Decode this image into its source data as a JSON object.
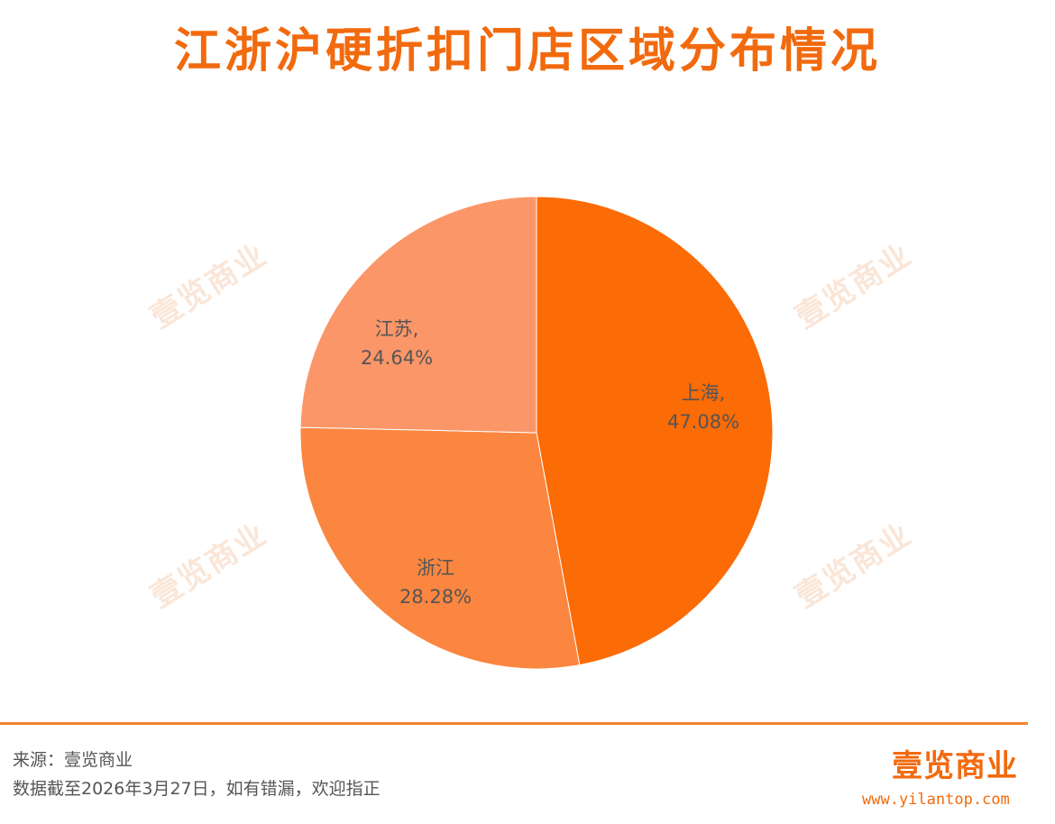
{
  "title": "江浙沪硬折扣门店区域分布情况",
  "watermark_text": "壹览商业",
  "chart_data": {
    "type": "pie",
    "title": "江浙沪硬折扣门店区域分布情况",
    "slices": [
      {
        "label": "上海",
        "display": "上海,",
        "value": 47.08,
        "percent_text": "47.08%",
        "color": "#fb6b06"
      },
      {
        "label": "浙江",
        "display": "浙江",
        "value": 28.28,
        "percent_text": "28.28%",
        "color": "#fb8640"
      },
      {
        "label": "江苏",
        "display": "江苏,",
        "value": 24.64,
        "percent_text": "24.64%",
        "color": "#fb9668"
      }
    ]
  },
  "footer": {
    "source": "来源：壹览商业",
    "note": "数据截至2026年3月27日，如有错漏，欢迎指正",
    "brand": "壹览商业",
    "url": "www.yilantop.com"
  },
  "colors": {
    "accent": "#f26a0e",
    "divider": "#f3832e"
  }
}
